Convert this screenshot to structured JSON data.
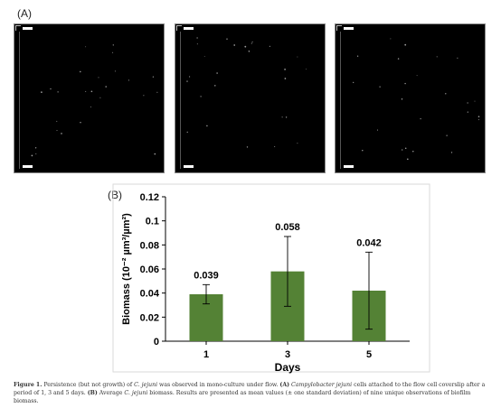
{
  "panel_a_label": "(A)",
  "panel_b_label": "(B)",
  "micrographs": [
    {
      "name": "day-1"
    },
    {
      "name": "day-3"
    },
    {
      "name": "day-5"
    }
  ],
  "caption": {
    "fig_label": "Figure 1.",
    "text1": " Persistence (but not growth) of ",
    "species1": "C. jejuni",
    "text2": " was observed in mono-culture under flow. ",
    "part_a": "(A)",
    "species2": "Campylobacter jejuni",
    "text3": " cells attached to the flow cell coverslip after a period of 1, 3 and 5 days. ",
    "part_b": "(B)",
    "text4": " Average ",
    "species3": "C. jejuni",
    "text5": " biomass. Results are presented as mean values (± one standard deviation) of nine unique observations of biofilm biomass."
  },
  "chart_data": {
    "type": "bar",
    "categories": [
      "1",
      "3",
      "5"
    ],
    "values": [
      0.039,
      0.058,
      0.042
    ],
    "errors": [
      0.008,
      0.029,
      0.032
    ],
    "data_labels": [
      "0.039",
      "0.058",
      "0.042"
    ],
    "xlabel": "Days",
    "ylabel": "Biomass (10⁻² µm³/µm²)",
    "ylim": [
      0,
      0.12
    ],
    "yticks": [
      "0",
      "0.02",
      "0.04",
      "0.06",
      "0.08",
      "0.1",
      "0.12"
    ],
    "grid": false,
    "bar_color": "#548235"
  }
}
